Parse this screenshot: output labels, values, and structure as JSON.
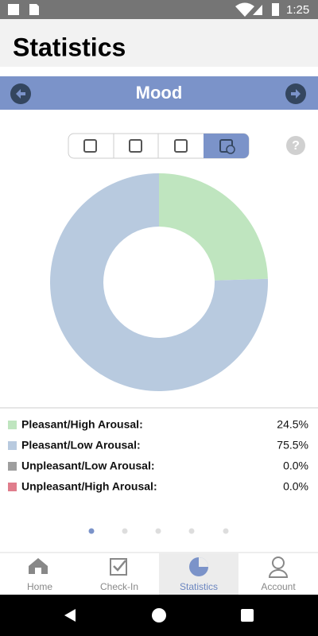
{
  "status_bar": {
    "time": "1:25"
  },
  "header": {
    "title": "Statistics"
  },
  "section": {
    "title": "Mood"
  },
  "chart_data": {
    "type": "pie",
    "categories": [
      "Pleasant/High Arousal:",
      "Pleasant/Low Arousal:",
      "Unpleasant/Low Arousal:",
      "Unpleasant/High Arousal:"
    ],
    "values": [
      24.5,
      75.5,
      0,
      0
    ],
    "value_labels": [
      "24.5%",
      "75.5%",
      "0.0%",
      "0.0%"
    ],
    "colors": [
      "#bfe5bf",
      "#b8cadf",
      "#9e9e9e",
      "#e07d8c"
    ]
  },
  "bottom_nav": {
    "items": [
      "Home",
      "Check-In",
      "Statistics",
      "Account"
    ],
    "active": 2
  }
}
